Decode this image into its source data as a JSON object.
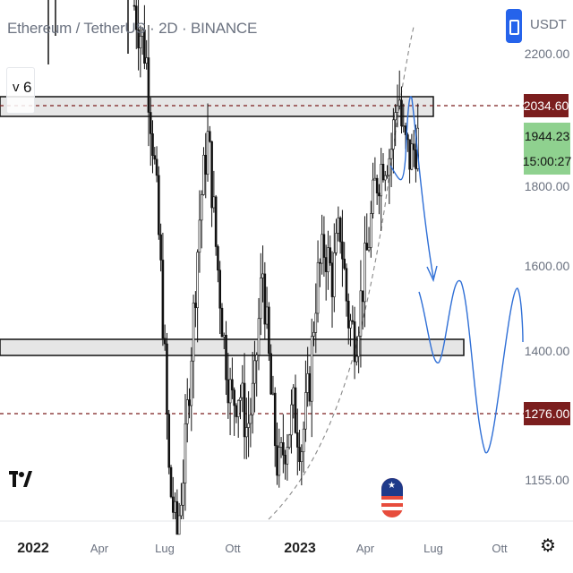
{
  "header": {
    "title": "Ethereum / TetherUS · 2D · BINANCE"
  },
  "indicator_toggle": {
    "chevron": "v",
    "count": "6"
  },
  "currency": {
    "label": "USDT",
    "icon": "currency-toggle-icon",
    "color": "#2563eb"
  },
  "colors": {
    "candle": "#111111",
    "zone_fill": "#e5e5e5",
    "dash_resistance": "#7b1e1e",
    "projection": "#2f6fd6",
    "price_green": "#7fbf7f",
    "marker_red": "#7b1e1e"
  },
  "chart_data": {
    "type": "candlestick",
    "title": "Ethereum / TetherUS · 2D · BINANCE",
    "ylim": [
      1080,
      2260
    ],
    "x_ticks": [
      "2022",
      "Apr",
      "Lug",
      "Ott",
      "2023",
      "Apr",
      "Lug",
      "Ott"
    ],
    "y_ticks": [
      {
        "label": "2200.00",
        "value": 2200
      },
      {
        "label": "1800.00",
        "value": 1800
      },
      {
        "label": "1600.00",
        "value": 1600
      },
      {
        "label": "1400.00",
        "value": 1400
      },
      {
        "label": "1155.00",
        "value": 1155
      }
    ],
    "price_markers": [
      {
        "label": "2034.60",
        "value": 2034.6,
        "kind": "resistance"
      },
      {
        "label": "1276.00",
        "value": 1276,
        "kind": "support"
      }
    ],
    "last_price": {
      "label": "1944.23",
      "value": 1944.23,
      "countdown": "15:00:27"
    },
    "zones": [
      {
        "name": "upper",
        "low": 2010,
        "high": 2055
      },
      {
        "name": "lower",
        "low": 1400,
        "high": 1440
      }
    ],
    "price_series": [
      {
        "t": 0.05,
        "v": 2780
      },
      {
        "t": 0.15,
        "v": 2600
      },
      {
        "t": 0.22,
        "v": 2540
      },
      {
        "t": 0.29,
        "v": 2200
      },
      {
        "t": 0.31,
        "v": 1900
      },
      {
        "t": 0.33,
        "v": 1550
      },
      {
        "t": 0.35,
        "v": 1150
      },
      {
        "t": 0.37,
        "v": 1050
      },
      {
        "t": 0.39,
        "v": 1200
      },
      {
        "t": 0.41,
        "v": 1450
      },
      {
        "t": 0.43,
        "v": 1750
      },
      {
        "t": 0.45,
        "v": 1950
      },
      {
        "t": 0.47,
        "v": 1650
      },
      {
        "t": 0.49,
        "v": 1430
      },
      {
        "t": 0.51,
        "v": 1300
      },
      {
        "t": 0.53,
        "v": 1330
      },
      {
        "t": 0.55,
        "v": 1250
      },
      {
        "t": 0.57,
        "v": 1330
      },
      {
        "t": 0.59,
        "v": 1600
      },
      {
        "t": 0.61,
        "v": 1330
      },
      {
        "t": 0.63,
        "v": 1170
      },
      {
        "t": 0.65,
        "v": 1230
      },
      {
        "t": 0.67,
        "v": 1290
      },
      {
        "t": 0.69,
        "v": 1220
      },
      {
        "t": 0.71,
        "v": 1330
      },
      {
        "t": 0.73,
        "v": 1560
      },
      {
        "t": 0.75,
        "v": 1650
      },
      {
        "t": 0.77,
        "v": 1570
      },
      {
        "t": 0.79,
        "v": 1700
      },
      {
        "t": 0.81,
        "v": 1480
      },
      {
        "t": 0.83,
        "v": 1430
      },
      {
        "t": 0.84,
        "v": 1500
      },
      {
        "t": 0.86,
        "v": 1640
      },
      {
        "t": 0.88,
        "v": 1800
      },
      {
        "t": 0.9,
        "v": 1880
      },
      {
        "t": 0.92,
        "v": 1900
      },
      {
        "t": 0.94,
        "v": 2110
      },
      {
        "t": 0.95,
        "v": 1950
      },
      {
        "t": 0.97,
        "v": 1880
      },
      {
        "t": 0.99,
        "v": 1944
      }
    ]
  }
}
